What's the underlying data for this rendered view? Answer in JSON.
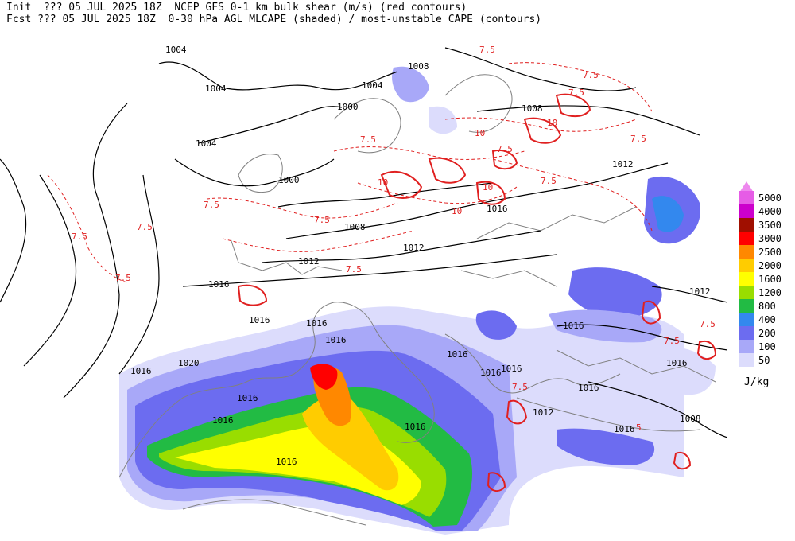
{
  "header": {
    "line1": "Init  ??? 05 JUL 2025 18Z  NCEP GFS 0-1 km bulk shear (m/s) (red contours)",
    "line2": "Fcst ??? 05 JUL 2025 18Z  0-30 hPa AGL MLCAPE (shaded) / most-unstable CAPE (contours)"
  },
  "legend": {
    "units": "J/kg",
    "levels": [
      {
        "label": "5000",
        "color": "#e65ce6"
      },
      {
        "label": "4000",
        "color": "#cc00cc"
      },
      {
        "label": "3500",
        "color": "#a00f00"
      },
      {
        "label": "3000",
        "color": "#ff0000"
      },
      {
        "label": "2500",
        "color": "#ff8800"
      },
      {
        "label": "2000",
        "color": "#ffcc00"
      },
      {
        "label": "1600",
        "color": "#ffff00"
      },
      {
        "label": "1200",
        "color": "#99dd00"
      },
      {
        "label": "800",
        "color": "#22bb44"
      },
      {
        "label": "400",
        "color": "#3388ee"
      },
      {
        "label": "200",
        "color": "#6c6cf0"
      },
      {
        "label": "100",
        "color": "#a8a8f8"
      },
      {
        "label": "50",
        "color": "#dcdcfc"
      }
    ]
  },
  "isobar_labels": [
    "1004",
    "1008",
    "1004",
    "1000",
    "1004",
    "1000",
    "1008",
    "1004",
    "1012",
    "1016",
    "1008",
    "1012",
    "1012",
    "1016",
    "1016",
    "1016",
    "1016",
    "1016",
    "1016",
    "1020",
    "1016",
    "1016",
    "1016",
    "1016",
    "1016",
    "1016",
    "1016",
    "1012",
    "1008",
    "1016",
    "1016",
    "1016",
    "1012"
  ],
  "shear_labels": [
    "7.5",
    "7.5",
    "7.5",
    "7.5",
    "10",
    "7.5",
    "10",
    "10",
    "10",
    "10",
    "7.5",
    "7.5",
    "7.5",
    "7.5",
    "7.5",
    "7.5",
    "7.5",
    "7.5",
    "7.5",
    "7.5",
    "7.5",
    "5"
  ],
  "colors": {
    "coast": "#808080",
    "isobar": "#000000",
    "shear": "#e02020"
  }
}
